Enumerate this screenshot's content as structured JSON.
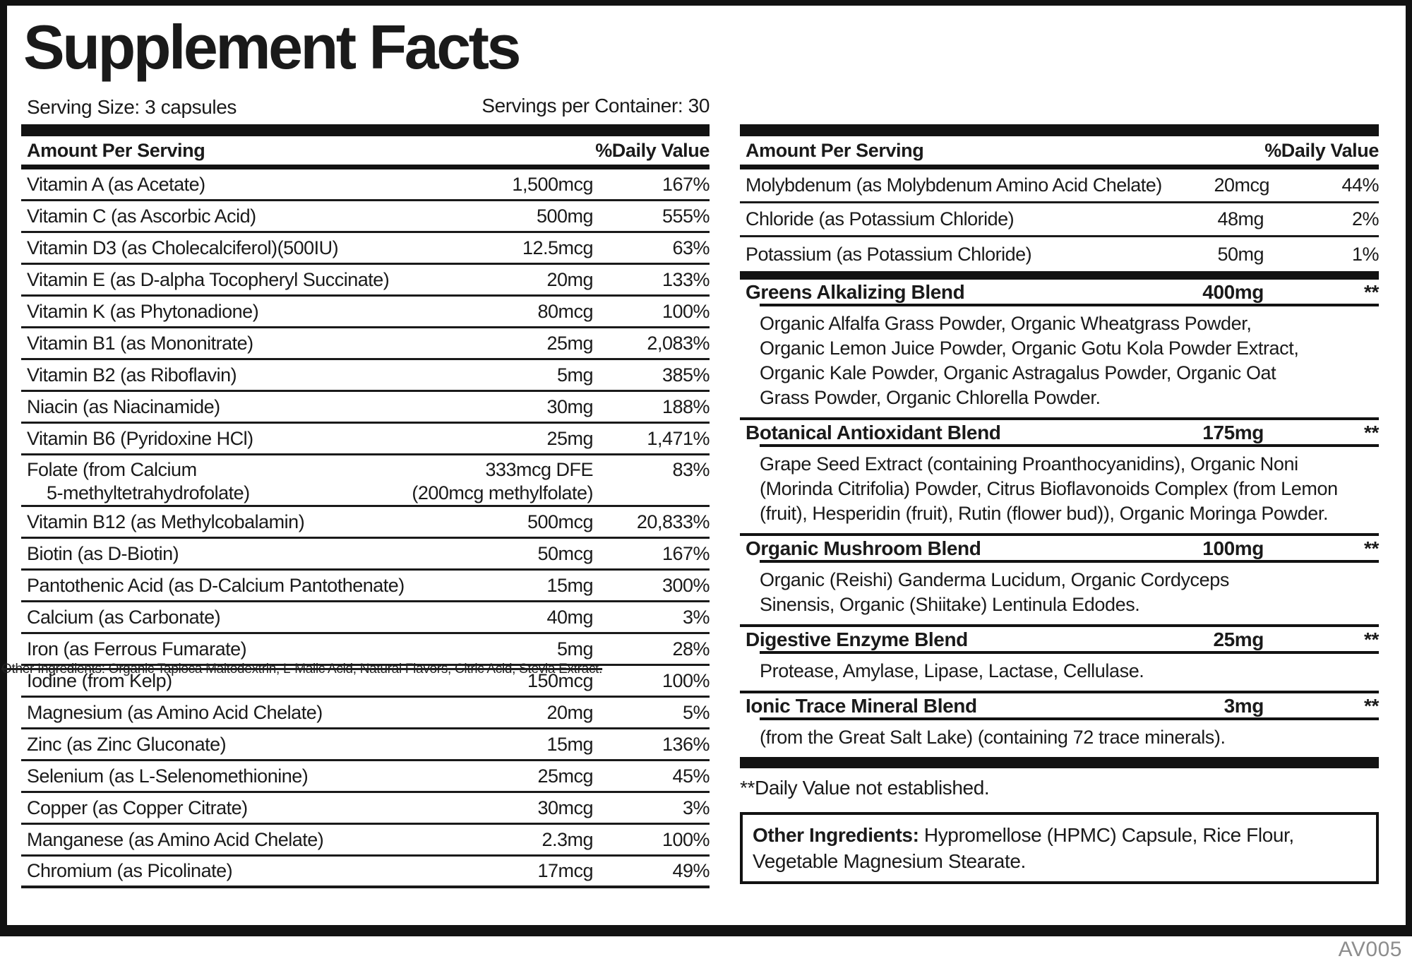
{
  "title": "Supplement Facts",
  "serving_size": "Serving Size: 3 capsules",
  "servings_per_container": "Servings per Container: 30",
  "table_headers": {
    "amount": "Amount Per Serving",
    "daily_value": "%Daily Value"
  },
  "left_table": {
    "rows": [
      {
        "name": "Vitamin A (as Acetate)",
        "amount": "1,500mcg",
        "dv": "167%"
      },
      {
        "name": "Vitamin C (as Ascorbic Acid)",
        "amount": "500mg",
        "dv": "555%"
      },
      {
        "name": "Vitamin D3 (as Cholecalciferol)(500IU)",
        "amount": "12.5mcg",
        "dv": "63%"
      },
      {
        "name": "Vitamin E (as D-alpha Tocopheryl Succinate)",
        "amount": "20mg",
        "dv": "133%"
      },
      {
        "name": "Vitamin K (as Phytonadione)",
        "amount": "80mcg",
        "dv": "100%"
      },
      {
        "name": "Vitamin B1 (as Mononitrate)",
        "amount": "25mg",
        "dv": "2,083%"
      },
      {
        "name": "Vitamin B2 (as Riboflavin)",
        "amount": "5mg",
        "dv": "385%"
      },
      {
        "name": "Niacin (as Niacinamide)",
        "amount": "30mg",
        "dv": "188%"
      },
      {
        "name": "Vitamin B6 (Pyridoxine HCl)",
        "amount": "25mg",
        "dv": "1,471%"
      },
      {
        "name": "Folate (from Calcium\n    5-methyltetrahydrofolate)",
        "amount": "333mcg DFE\n(200mcg methylfolate)",
        "dv": "83%"
      },
      {
        "name": "Vitamin B12 (as Methylcobalamin)",
        "amount": "500mcg",
        "dv": "20,833%"
      },
      {
        "name": "Biotin (as D-Biotin)",
        "amount": "50mcg",
        "dv": "167%"
      },
      {
        "name": "Pantothenic Acid (as D-Calcium Pantothenate)",
        "amount": "15mg",
        "dv": "300%"
      },
      {
        "name": "Calcium (as Carbonate)",
        "amount": "40mg",
        "dv": "3%"
      },
      {
        "name": "Iron (as Ferrous Fumarate)",
        "amount": "5mg",
        "dv": "28%"
      },
      {
        "name": "Iodine (from Kelp)",
        "amount": "150mcg",
        "dv": "100%"
      },
      {
        "name": "Magnesium (as Amino Acid Chelate)",
        "amount": "20mg",
        "dv": "5%"
      },
      {
        "name": "Zinc (as Zinc Gluconate)",
        "amount": "15mg",
        "dv": "136%"
      },
      {
        "name": "Selenium (as L-Selenomethionine)",
        "amount": "25mcg",
        "dv": "45%"
      },
      {
        "name": "Copper (as Copper Citrate)",
        "amount": "30mcg",
        "dv": "3%"
      },
      {
        "name": "Manganese (as Amino Acid Chelate)",
        "amount": "2.3mg",
        "dv": "100%"
      },
      {
        "name": "Chromium (as Picolinate)",
        "amount": "17mcg",
        "dv": "49%"
      }
    ]
  },
  "strikethrough_note": "Other Ingredients: Organic Tapioca Maltodextrin, L-Malic Acid, Natural Flavors, Citric Acid, Stevia Extract.",
  "right_table": {
    "rows": [
      {
        "name": "Molybdenum (as Molybdenum Amino Acid Chelate)",
        "amount": "20mcg",
        "dv": "44%"
      },
      {
        "name": "Chloride (as Potassium Chloride)",
        "amount": "48mg",
        "dv": "2%"
      },
      {
        "name": "Potassium (as Potassium Chloride)",
        "amount": "50mg",
        "dv": "1%"
      }
    ]
  },
  "blends": [
    {
      "name": "Greens Alkalizing Blend",
      "amount": "400mg",
      "dv": "**",
      "desc": "Organic Alfalfa Grass Powder, Organic Wheatgrass Powder,\nOrganic Lemon Juice Powder, Organic Gotu Kola Powder Extract,\nOrganic Kale Powder, Organic Astragalus Powder, Organic Oat\nGrass Powder, Organic Chlorella Powder."
    },
    {
      "name": "Botanical Antioxidant Blend",
      "amount": "175mg",
      "dv": "**",
      "desc": "Grape Seed Extract (containing Proanthocyanidins), Organic Noni\n(Morinda Citrifolia) Powder, Citrus Bioflavonoids Complex (from Lemon\n(fruit), Hesperidin (fruit), Rutin (flower bud)), Organic Moringa Powder."
    },
    {
      "name": "Organic Mushroom Blend",
      "amount": "100mg",
      "dv": "**",
      "desc": "Organic (Reishi) Ganderma Lucidum, Organic Cordyceps\nSinensis, Organic (Shiitake) Lentinula Edodes."
    },
    {
      "name": "Digestive Enzyme Blend",
      "amount": "25mg",
      "dv": "**",
      "desc": "Protease, Amylase, Lipase, Lactase, Cellulase."
    },
    {
      "name": "Ionic Trace Mineral Blend",
      "amount": "3mg",
      "dv": "**",
      "desc": "(from the Great Salt Lake) (containing 72 trace minerals)."
    }
  ],
  "footnote": "**Daily Value not established.",
  "other_ingredients": {
    "label": "Other Ingredients: ",
    "text": "Hypromellose (HPMC) Capsule, Rice Flour, Vegetable Magnesium Stearate."
  },
  "code": "AV005",
  "colors": {
    "ink": "#121212",
    "code_gray": "#8d8d8d",
    "background": "#ffffff"
  }
}
